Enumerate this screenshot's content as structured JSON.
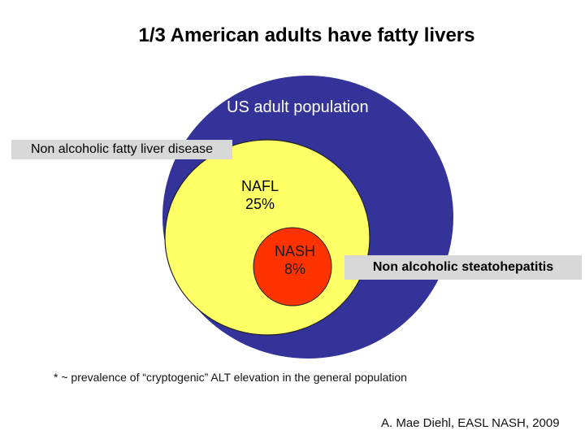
{
  "title": "1/3 American adults have fatty livers",
  "circles": {
    "us_adult_population": {
      "label": "US adult population",
      "color": "#333399"
    },
    "nafl": {
      "label": "NAFL",
      "value": "25%",
      "color": "#ffff66"
    },
    "nash": {
      "label": "NASH",
      "value": "8%",
      "color": "#ff3300"
    }
  },
  "callouts": {
    "nafld": "Non alcoholic fatty liver disease",
    "nash": "Non alcoholic steatohepatitis"
  },
  "footnote": "* ~ prevalence of “cryptogenic” ALT elevation in the general population",
  "citation": "A. Mae Diehl, EASL NASH, 2009"
}
